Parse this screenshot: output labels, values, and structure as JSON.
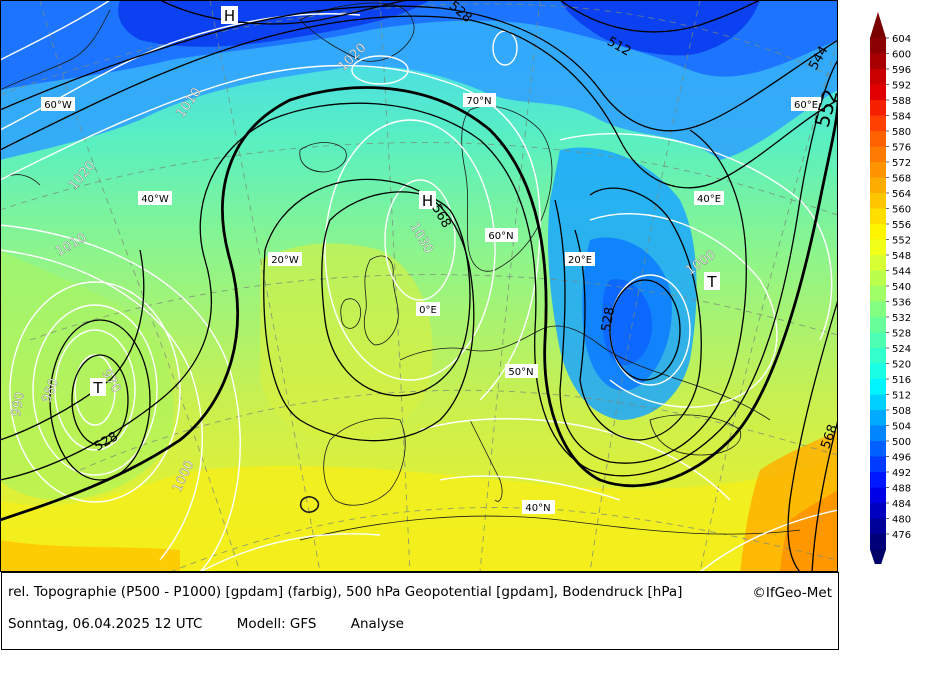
{
  "caption": {
    "title": "rel. Topographie (P500 - P1000) [gpdam] (farbig), 500 hPa Geopotential [gpdam], Bodendruck [hPa]",
    "copyright": "©IfGeo-Met",
    "date": "Sonntag, 06.04.2025 12 UTC",
    "model": "Modell: GFS",
    "run": "Analyse"
  },
  "colorbar": {
    "levels": [
      "604",
      "600",
      "596",
      "592",
      "588",
      "584",
      "580",
      "576",
      "572",
      "568",
      "564",
      "560",
      "556",
      "552",
      "548",
      "544",
      "540",
      "536",
      "532",
      "528",
      "524",
      "520",
      "516",
      "512",
      "508",
      "504",
      "500",
      "496",
      "492",
      "488",
      "484",
      "480",
      "476"
    ],
    "colors": [
      "#8b0000",
      "#a80000",
      "#c80000",
      "#e00000",
      "#f42000",
      "#ff4000",
      "#ff6000",
      "#ff7a00",
      "#ff9400",
      "#ffad00",
      "#ffc600",
      "#ffdf00",
      "#fff500",
      "#f2ff19",
      "#d7ff33",
      "#bbff4d",
      "#9fff66",
      "#82ff80",
      "#66ff99",
      "#4dffb3",
      "#33ffcc",
      "#19ffe6",
      "#00f5ff",
      "#00d0ff",
      "#00aaff",
      "#0085ff",
      "#0060ff",
      "#003cff",
      "#0018ff",
      "#0000e6",
      "#0000c0",
      "#00009a",
      "#000078"
    ],
    "top_color": "#7a0000",
    "bottom_color": "#00006a"
  },
  "map": {
    "graticule_labels": [
      "60°W",
      "70°N",
      "60°E",
      "40°W",
      "40°E",
      "20°W",
      "60°N",
      "20°E",
      "0°E",
      "50°N",
      "40°N"
    ],
    "pressure_centers": [
      "H",
      "H",
      "T",
      "T"
    ],
    "geopotential_labels": [
      "528",
      "512",
      "544",
      "552",
      "568",
      "528",
      "528",
      "568"
    ],
    "pressure_labels": [
      "1020",
      "1010",
      "1020",
      "1010",
      "1030",
      "1000",
      "990",
      "980",
      "970",
      "1000"
    ]
  }
}
